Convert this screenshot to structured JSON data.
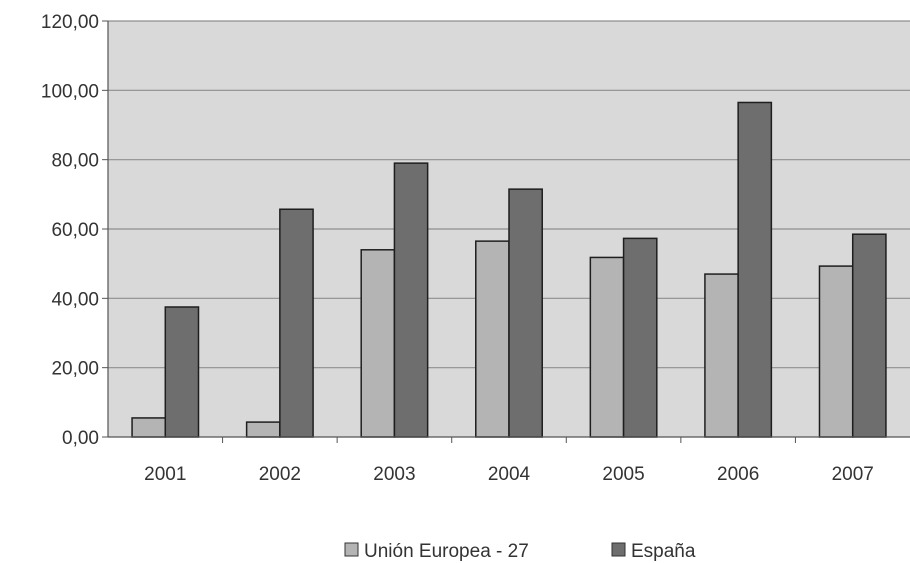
{
  "chart_data": {
    "type": "bar",
    "categories": [
      "2001",
      "2002",
      "2003",
      "2004",
      "2005",
      "2006",
      "2007"
    ],
    "series": [
      {
        "name": "Unión Europea - 27",
        "values": [
          5.5,
          4.3,
          54.0,
          56.5,
          51.8,
          47.0,
          49.3
        ],
        "color": "#b4b4b4"
      },
      {
        "name": "España",
        "values": [
          37.5,
          65.7,
          79.0,
          71.5,
          57.3,
          96.5,
          58.5
        ],
        "color": "#6e6e6e"
      }
    ],
    "ylim": [
      0,
      120
    ],
    "y_ticks": [
      "0,00",
      "20,00",
      "40,00",
      "60,00",
      "80,00",
      "100,00",
      "120,00"
    ],
    "grid": true,
    "legend": "bottom",
    "plot_background": "#d9d9d9"
  }
}
